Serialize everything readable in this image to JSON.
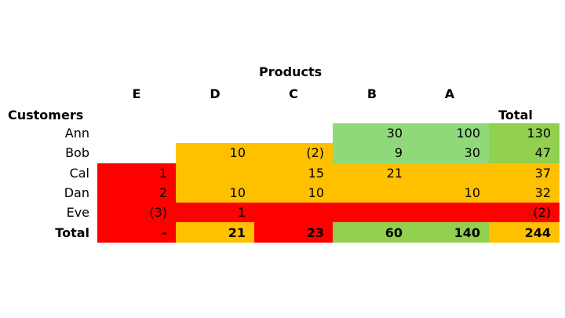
{
  "title": "Products",
  "row_header": "Customers",
  "columns": [
    "E",
    "D",
    "C",
    "B",
    "A",
    "Total"
  ],
  "colors": {
    "r": "#FF0000",
    "o": "#FFC000",
    "lg": "#8FD97A",
    "g": "#92D050",
    "n": "#FFFFFF"
  },
  "rows": [
    {
      "name": "Ann",
      "values": [
        "",
        "",
        "",
        "30",
        "100",
        "130"
      ],
      "fill": [
        "n",
        "n",
        "n",
        "lg",
        "lg",
        "g"
      ]
    },
    {
      "name": "Bob",
      "values": [
        "",
        "10",
        "(2)",
        "9",
        "30",
        "47"
      ],
      "fill": [
        "n",
        "o",
        "o",
        "lg",
        "lg",
        "g"
      ]
    },
    {
      "name": "Cal",
      "values": [
        "1",
        "",
        "15",
        "21",
        "",
        "37"
      ],
      "fill": [
        "r",
        "o",
        "o",
        "o",
        "o",
        "o"
      ]
    },
    {
      "name": "Dan",
      "values": [
        "2",
        "10",
        "10",
        "",
        "10",
        "32"
      ],
      "fill": [
        "r",
        "o",
        "o",
        "o",
        "o",
        "o"
      ]
    },
    {
      "name": "Eve",
      "values": [
        "(3)",
        "1",
        "",
        "",
        "",
        "(2)"
      ],
      "fill": [
        "r",
        "r",
        "r",
        "r",
        "r",
        "r"
      ]
    },
    {
      "name": "Total",
      "values": [
        "-",
        "21",
        "23",
        "60",
        "140",
        "244"
      ],
      "fill": [
        "r",
        "o",
        "r",
        "g",
        "g",
        "o"
      ],
      "bold": true
    }
  ]
}
